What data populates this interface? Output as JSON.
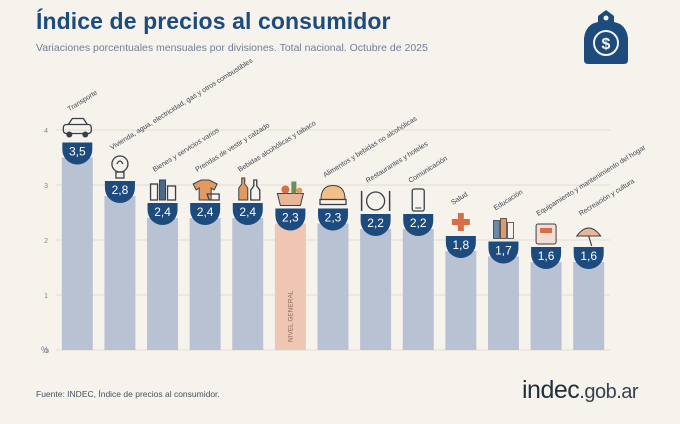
{
  "title": "Índice de precios al consumidor",
  "subtitle": "Variaciones porcentuales mensuales por divisiones. Total nacional. Octubre de 2025",
  "source": "Fuente: INDEC, Índice de precios al consumidor.",
  "brand": {
    "name": "indec",
    "tld": ".gob.ar"
  },
  "logo": {
    "icon": "price-tag-dollar-icon",
    "symbol": "$"
  },
  "colors": {
    "bar": "#b8c2d3",
    "highlight_bar": "#efc6b4",
    "badge": "#1d4b7e",
    "title": "#1d4b7e",
    "background": "#f6f3ec"
  },
  "chart_data": {
    "type": "bar",
    "ylabel": "%",
    "ylim": [
      0,
      4
    ],
    "yticks": [
      "0",
      "1",
      "2",
      "3",
      "4"
    ],
    "grid": true,
    "categories": [
      "Transporte",
      "Vivienda, agua, electricidad, gas y otros combustibles",
      "Bienes y servicios varios",
      "Prendas de vestir y calzado",
      "Bebidas alcohólicas y tabaco",
      "NIVEL GENERAL",
      "Alimentos y bebidas no alcohólicas",
      "Restaurantes y hoteles",
      "Comunicación",
      "Salud",
      "Educación",
      "Equipamiento y mantenimiento del hogar",
      "Recreación y cultura"
    ],
    "values": [
      3.5,
      2.8,
      2.4,
      2.4,
      2.4,
      2.3,
      2.3,
      2.2,
      2.2,
      1.8,
      1.7,
      1.6,
      1.6
    ],
    "value_labels": [
      "3,5",
      "2,8",
      "2,4",
      "2,4",
      "2,4",
      "2,3",
      "2,3",
      "2,2",
      "2,2",
      "1,8",
      "1,7",
      "1,6",
      "1,6"
    ],
    "highlight_index": 5,
    "icons": [
      "car-icon",
      "lightbulb-icon",
      "toiletries-icon",
      "clothing-icon",
      "bottles-icon",
      "basket-icon",
      "food-icon",
      "dining-icon",
      "phone-icon",
      "health-cross-icon",
      "books-icon",
      "appliances-icon",
      "leisure-icon"
    ]
  }
}
